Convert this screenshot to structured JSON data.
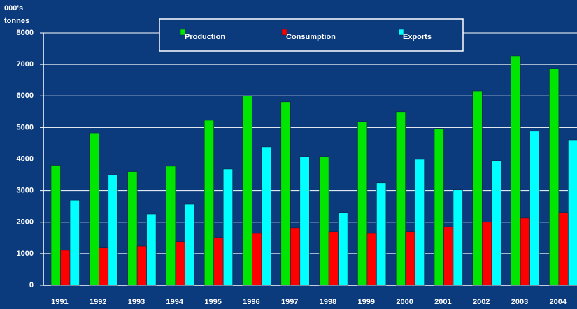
{
  "chart_data": {
    "type": "bar",
    "y_label": [
      "000's",
      "tonnes"
    ],
    "categories": [
      "1991",
      "1992",
      "1993",
      "1994",
      "1995",
      "1996",
      "1997",
      "1998",
      "1999",
      "2000",
      "2001",
      "2002",
      "2003",
      "2004"
    ],
    "series": [
      {
        "name": "Production",
        "color": "#00e600",
        "values": [
          3800,
          4830,
          3600,
          3770,
          5230,
          6000,
          5810,
          4080,
          5190,
          5500,
          4970,
          6160,
          7270,
          6870
        ]
      },
      {
        "name": "Consumption",
        "color": "#ff0000",
        "values": [
          1110,
          1180,
          1240,
          1380,
          1510,
          1640,
          1820,
          1690,
          1640,
          1690,
          1860,
          2000,
          2130,
          2310
        ]
      },
      {
        "name": "Exports",
        "color": "#00ffff",
        "values": [
          2700,
          3500,
          2260,
          2570,
          3680,
          4390,
          4080,
          2310,
          3240,
          3990,
          3020,
          3950,
          4880,
          4610
        ]
      }
    ],
    "ylim": [
      0,
      8000
    ],
    "yticks": [
      0,
      1000,
      2000,
      3000,
      4000,
      5000,
      6000,
      7000,
      8000
    ],
    "grid": true,
    "legend": "top"
  }
}
